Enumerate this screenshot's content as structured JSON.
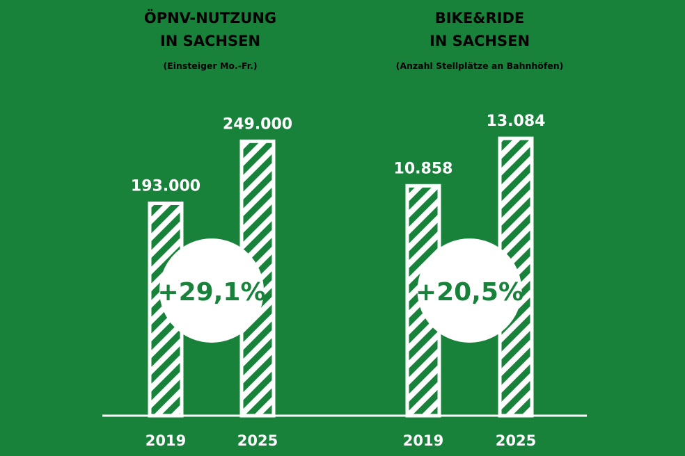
{
  "chart_data": [
    {
      "type": "bar",
      "title": "ÖPNV-NUTZUNG",
      "title_line2": "IN SACHSEN",
      "subtitle": "(Einsteiger Mo.-Fr.)",
      "categories": [
        "2019",
        "2025"
      ],
      "values": [
        193000,
        249000
      ],
      "value_labels": [
        "193.000",
        "249.000"
      ],
      "change_label": "+29,1%",
      "ylim": [
        0,
        300000
      ],
      "bar_style": "diagonal-stripes",
      "grid": false
    },
    {
      "type": "bar",
      "title": "BIKE&RIDE",
      "title_line2": "IN SACHSEN",
      "subtitle": "(Anzahl Stellplätze an Bahnhöfen)",
      "categories": [
        "2019",
        "2025"
      ],
      "values": [
        10858,
        13084
      ],
      "value_labels": [
        "10.858",
        "13.084"
      ],
      "change_label": "+20,5%",
      "ylim": [
        0,
        15600
      ],
      "bar_style": "diagonal-stripes",
      "grid": false
    }
  ],
  "colors": {
    "background": "#18823a",
    "foreground": "#ffffff",
    "accent": "#18823a"
  }
}
